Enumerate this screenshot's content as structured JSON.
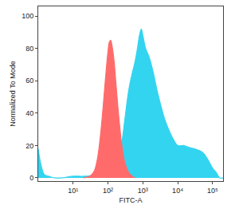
{
  "chart_data": {
    "type": "area",
    "x_label": "FITC-A",
    "y_label": "Normalized To Mode",
    "log": "x",
    "grid": false,
    "xlim": [
      1,
      200000
    ],
    "ylim": [
      -2,
      106
    ],
    "xticks": [
      {
        "value": 10,
        "label": "10¹"
      },
      {
        "value": 100,
        "label": "10²"
      },
      {
        "value": 1000,
        "label": "10³"
      },
      {
        "value": 10000,
        "label": "10⁴"
      },
      {
        "value": 100000,
        "label": "10⁵"
      }
    ],
    "yticks": [
      0,
      20,
      40,
      60,
      80,
      100
    ],
    "series": [
      {
        "color": "#33d4f0",
        "x": [
          1,
          1.2,
          1.5,
          2,
          3,
          5,
          10,
          20,
          50,
          100,
          150,
          200,
          250,
          300,
          400,
          500,
          600,
          700,
          800,
          900,
          1000,
          1200,
          1500,
          2000,
          2500,
          3000,
          4000,
          5000,
          7000,
          10000,
          15000,
          20000,
          30000,
          50000,
          70000,
          100000,
          130000,
          160000,
          200000
        ],
        "values": [
          18,
          8,
          2,
          1,
          0,
          0,
          1,
          1,
          2,
          3,
          6,
          12,
          22,
          35,
          55,
          65,
          72,
          80,
          88,
          92,
          88,
          80,
          75,
          65,
          55,
          48,
          38,
          32,
          25,
          20,
          20,
          19,
          18,
          16,
          12,
          6,
          3,
          0,
          0
        ]
      },
      {
        "color": "#ff6b6b",
        "x": [
          20,
          30,
          40,
          50,
          60,
          70,
          80,
          90,
          100,
          110,
          120,
          130,
          150,
          170,
          200,
          250,
          300,
          400,
          500,
          600
        ],
        "values": [
          0,
          1,
          4,
          12,
          25,
          40,
          55,
          68,
          78,
          84,
          85,
          82,
          72,
          58,
          40,
          20,
          10,
          3,
          1,
          0
        ]
      }
    ]
  }
}
